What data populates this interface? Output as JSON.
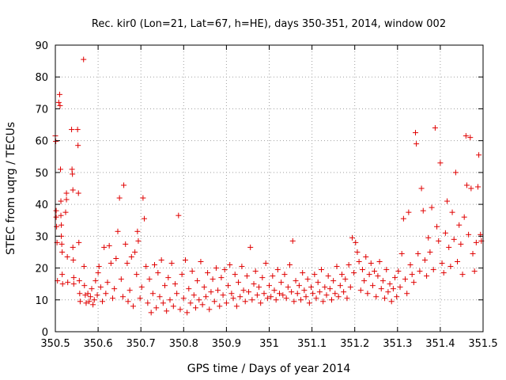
{
  "chart_data": {
    "type": "scatter",
    "title": "Rec. kir0 (Lon=21, Lat=67, h=HE), days 350-351, 2014, window 002",
    "xlabel": "GPS time / Days of year 2014",
    "ylabel": "STEC from uqrg / TECUs",
    "xlim": [
      350.5,
      351.5
    ],
    "ylim": [
      0,
      90
    ],
    "x_ticks": [
      350.5,
      350.6,
      350.7,
      350.8,
      350.9,
      351,
      351.1,
      351.2,
      351.3,
      351.4,
      351.5
    ],
    "x_tick_labels": [
      "350.5",
      "350.6",
      "350.7",
      "350.8",
      "350.9",
      "351",
      "351.1",
      "351.2",
      "351.3",
      "351.4",
      "351.5"
    ],
    "y_ticks": [
      0,
      10,
      20,
      30,
      40,
      50,
      60,
      70,
      80,
      90
    ],
    "y_tick_labels": [
      "0",
      "10",
      "20",
      "30",
      "40",
      "50",
      "60",
      "70",
      "80",
      "90"
    ],
    "grid": true,
    "marker": "plus",
    "color": "#e00000",
    "series": [
      {
        "points": [
          [
            350.5,
            61.5
          ],
          [
            350.501,
            59.8
          ],
          [
            350.502,
            38.0
          ],
          [
            350.502,
            36.0
          ],
          [
            350.503,
            33.0
          ],
          [
            350.504,
            28.0
          ],
          [
            350.505,
            16.0
          ],
          [
            350.508,
            72.0
          ],
          [
            350.51,
            74.5
          ],
          [
            350.511,
            71.0
          ],
          [
            350.512,
            51.0
          ],
          [
            350.513,
            41.0
          ],
          [
            350.513,
            36.5
          ],
          [
            350.514,
            33.5
          ],
          [
            350.514,
            30.0
          ],
          [
            350.515,
            27.5
          ],
          [
            350.516,
            25.0
          ],
          [
            350.516,
            18.0
          ],
          [
            350.517,
            15.0
          ],
          [
            350.524,
            37.5
          ],
          [
            350.526,
            41.5
          ],
          [
            350.526,
            43.5
          ],
          [
            350.528,
            23.5
          ],
          [
            350.529,
            15.5
          ],
          [
            350.538,
            63.5
          ],
          [
            350.539,
            51.0
          ],
          [
            350.54,
            49.5
          ],
          [
            350.541,
            44.5
          ],
          [
            350.541,
            26.5
          ],
          [
            350.542,
            22.5
          ],
          [
            350.543,
            17.0
          ],
          [
            350.543,
            15.0
          ],
          [
            350.552,
            63.5
          ],
          [
            350.553,
            58.5
          ],
          [
            350.554,
            43.5
          ],
          [
            350.555,
            28.0
          ],
          [
            350.556,
            16.0
          ],
          [
            350.557,
            12.0
          ],
          [
            350.558,
            9.5
          ],
          [
            350.566,
            85.5
          ],
          [
            350.567,
            20.5
          ],
          [
            350.568,
            14.5
          ],
          [
            350.57,
            11.5
          ],
          [
            350.572,
            9.0
          ],
          [
            350.576,
            12.0
          ],
          [
            350.579,
            9.5
          ],
          [
            350.582,
            11.0
          ],
          [
            350.585,
            13.5
          ],
          [
            350.588,
            8.5
          ],
          [
            350.591,
            10.0
          ],
          [
            350.594,
            16.0
          ],
          [
            350.598,
            11.5
          ],
          [
            350.6,
            18.5
          ],
          [
            350.602,
            20.5
          ],
          [
            350.606,
            14.0
          ],
          [
            350.61,
            9.5
          ],
          [
            350.614,
            26.5
          ],
          [
            350.618,
            12.0
          ],
          [
            350.622,
            15.5
          ],
          [
            350.626,
            27.0
          ],
          [
            350.63,
            21.5
          ],
          [
            350.634,
            10.5
          ],
          [
            350.638,
            13.5
          ],
          [
            350.642,
            23.0
          ],
          [
            350.646,
            31.5
          ],
          [
            350.65,
            42.0
          ],
          [
            350.654,
            16.5
          ],
          [
            350.658,
            11.0
          ],
          [
            350.66,
            46.0
          ],
          [
            350.664,
            27.5
          ],
          [
            350.668,
            21.5
          ],
          [
            350.67,
            9.5
          ],
          [
            350.674,
            13.0
          ],
          [
            350.678,
            23.5
          ],
          [
            350.682,
            8.0
          ],
          [
            350.686,
            25.0
          ],
          [
            350.69,
            18.0
          ],
          [
            350.692,
            31.5
          ],
          [
            350.694,
            28.5
          ],
          [
            350.698,
            10.5
          ],
          [
            350.702,
            14.0
          ],
          [
            350.705,
            42.0
          ],
          [
            350.708,
            35.5
          ],
          [
            350.712,
            20.5
          ],
          [
            350.716,
            9.0
          ],
          [
            350.72,
            16.5
          ],
          [
            350.724,
            6.0
          ],
          [
            350.728,
            12.0
          ],
          [
            350.732,
            21.0
          ],
          [
            350.736,
            7.5
          ],
          [
            350.74,
            18.5
          ],
          [
            350.744,
            11.0
          ],
          [
            350.748,
            22.5
          ],
          [
            350.752,
            9.0
          ],
          [
            350.756,
            14.5
          ],
          [
            350.76,
            6.5
          ],
          [
            350.764,
            17.0
          ],
          [
            350.768,
            10.0
          ],
          [
            350.772,
            21.5
          ],
          [
            350.776,
            8.0
          ],
          [
            350.78,
            15.0
          ],
          [
            350.784,
            12.0
          ],
          [
            350.788,
            36.5
          ],
          [
            350.792,
            7.0
          ],
          [
            350.796,
            18.0
          ],
          [
            350.8,
            10.5
          ],
          [
            350.804,
            22.5
          ],
          [
            350.808,
            6.0
          ],
          [
            350.812,
            13.5
          ],
          [
            350.816,
            9.0
          ],
          [
            350.82,
            19.0
          ],
          [
            350.824,
            11.5
          ],
          [
            350.828,
            7.5
          ],
          [
            350.832,
            16.0
          ],
          [
            350.836,
            10.0
          ],
          [
            350.84,
            22.0
          ],
          [
            350.844,
            8.5
          ],
          [
            350.848,
            14.0
          ],
          [
            350.852,
            11.0
          ],
          [
            350.856,
            18.5
          ],
          [
            350.86,
            7.0
          ],
          [
            350.864,
            12.5
          ],
          [
            350.868,
            16.5
          ],
          [
            350.872,
            9.5
          ],
          [
            350.876,
            20.0
          ],
          [
            350.88,
            13.0
          ],
          [
            350.884,
            8.0
          ],
          [
            350.888,
            17.0
          ],
          [
            350.892,
            11.5
          ],
          [
            350.896,
            19.5
          ],
          [
            350.9,
            9.0
          ],
          [
            350.904,
            14.5
          ],
          [
            350.908,
            21.0
          ],
          [
            350.912,
            12.0
          ],
          [
            350.916,
            10.5
          ],
          [
            350.92,
            18.0
          ],
          [
            350.924,
            8.0
          ],
          [
            350.928,
            15.5
          ],
          [
            350.932,
            11.0
          ],
          [
            350.936,
            20.5
          ],
          [
            350.94,
            13.0
          ],
          [
            350.944,
            9.5
          ],
          [
            350.948,
            17.5
          ],
          [
            350.952,
            12.5
          ],
          [
            350.956,
            26.5
          ],
          [
            350.96,
            10.0
          ],
          [
            350.964,
            15.0
          ],
          [
            350.968,
            19.0
          ],
          [
            350.972,
            11.5
          ],
          [
            350.976,
            14.0
          ],
          [
            350.98,
            9.0
          ],
          [
            350.984,
            17.0
          ],
          [
            350.988,
            12.0
          ],
          [
            350.992,
            21.5
          ],
          [
            350.996,
            10.5
          ],
          [
            351.0,
            14.5
          ],
          [
            351.004,
            11.0
          ],
          [
            351.008,
            17.5
          ],
          [
            351.012,
            13.0
          ],
          [
            351.016,
            10.0
          ],
          [
            351.02,
            19.5
          ],
          [
            351.024,
            12.0
          ],
          [
            351.028,
            15.5
          ],
          [
            351.032,
            11.5
          ],
          [
            351.036,
            18.0
          ],
          [
            351.04,
            10.5
          ],
          [
            351.044,
            14.0
          ],
          [
            351.048,
            21.0
          ],
          [
            351.052,
            12.5
          ],
          [
            351.055,
            28.5
          ],
          [
            351.058,
            9.5
          ],
          [
            351.062,
            16.0
          ],
          [
            351.066,
            12.0
          ],
          [
            351.07,
            14.5
          ],
          [
            351.074,
            10.0
          ],
          [
            351.078,
            18.5
          ],
          [
            351.082,
            13.0
          ],
          [
            351.086,
            11.0
          ],
          [
            351.09,
            16.5
          ],
          [
            351.094,
            9.0
          ],
          [
            351.098,
            14.0
          ],
          [
            351.102,
            12.0
          ],
          [
            351.106,
            18.0
          ],
          [
            351.11,
            10.5
          ],
          [
            351.114,
            15.5
          ],
          [
            351.118,
            12.5
          ],
          [
            351.122,
            19.5
          ],
          [
            351.126,
            9.5
          ],
          [
            351.13,
            14.0
          ],
          [
            351.134,
            11.5
          ],
          [
            351.138,
            17.5
          ],
          [
            351.142,
            13.5
          ],
          [
            351.146,
            10.0
          ],
          [
            351.15,
            16.0
          ],
          [
            351.154,
            12.0
          ],
          [
            351.158,
            20.5
          ],
          [
            351.162,
            11.0
          ],
          [
            351.166,
            14.5
          ],
          [
            351.17,
            18.0
          ],
          [
            351.174,
            12.5
          ],
          [
            351.178,
            16.5
          ],
          [
            351.182,
            10.5
          ],
          [
            351.186,
            21.0
          ],
          [
            351.19,
            14.0
          ],
          [
            351.194,
            29.5
          ],
          [
            351.198,
            18.5
          ],
          [
            351.202,
            28.0
          ],
          [
            351.206,
            25.0
          ],
          [
            351.21,
            22.0
          ],
          [
            351.214,
            13.0
          ],
          [
            351.218,
            19.5
          ],
          [
            351.222,
            16.0
          ],
          [
            351.226,
            23.5
          ],
          [
            351.23,
            12.0
          ],
          [
            351.234,
            18.0
          ],
          [
            351.238,
            21.5
          ],
          [
            351.242,
            14.5
          ],
          [
            351.246,
            19.0
          ],
          [
            351.25,
            11.0
          ],
          [
            351.254,
            17.5
          ],
          [
            351.258,
            22.0
          ],
          [
            351.262,
            13.5
          ],
          [
            351.266,
            16.0
          ],
          [
            351.27,
            10.5
          ],
          [
            351.274,
            19.5
          ],
          [
            351.278,
            12.5
          ],
          [
            351.282,
            15.0
          ],
          [
            351.286,
            9.5
          ],
          [
            351.29,
            13.5
          ],
          [
            351.294,
            17.0
          ],
          [
            351.298,
            11.0
          ],
          [
            351.302,
            19.0
          ],
          [
            351.306,
            14.0
          ],
          [
            351.31,
            24.5
          ],
          [
            351.314,
            35.5
          ],
          [
            351.318,
            16.5
          ],
          [
            351.322,
            12.0
          ],
          [
            351.326,
            37.5
          ],
          [
            351.33,
            21.0
          ],
          [
            351.334,
            18.0
          ],
          [
            351.338,
            15.5
          ],
          [
            351.342,
            62.5
          ],
          [
            351.344,
            59.0
          ],
          [
            351.348,
            24.5
          ],
          [
            351.352,
            19.0
          ],
          [
            351.356,
            45.0
          ],
          [
            351.36,
            38.0
          ],
          [
            351.364,
            22.5
          ],
          [
            351.368,
            17.5
          ],
          [
            351.372,
            29.5
          ],
          [
            351.376,
            25.0
          ],
          [
            351.38,
            39.0
          ],
          [
            351.384,
            19.5
          ],
          [
            351.388,
            64.0
          ],
          [
            351.392,
            33.0
          ],
          [
            351.396,
            28.5
          ],
          [
            351.4,
            53.0
          ],
          [
            351.404,
            21.5
          ],
          [
            351.408,
            18.5
          ],
          [
            351.412,
            31.0
          ],
          [
            351.416,
            41.0
          ],
          [
            351.42,
            26.5
          ],
          [
            351.424,
            20.5
          ],
          [
            351.428,
            37.5
          ],
          [
            351.432,
            29.0
          ],
          [
            351.436,
            50.0
          ],
          [
            351.44,
            22.0
          ],
          [
            351.444,
            33.5
          ],
          [
            351.448,
            27.5
          ],
          [
            351.452,
            18.0
          ],
          [
            351.456,
            36.0
          ],
          [
            351.46,
            61.5
          ],
          [
            351.462,
            46.0
          ],
          [
            351.466,
            30.5
          ],
          [
            351.47,
            61.0
          ],
          [
            351.472,
            45.0
          ],
          [
            351.476,
            24.5
          ],
          [
            351.48,
            19.0
          ],
          [
            351.484,
            28.0
          ],
          [
            351.488,
            45.5
          ],
          [
            351.49,
            55.5
          ],
          [
            351.494,
            30.5
          ],
          [
            351.496,
            28.5
          ]
        ]
      }
    ]
  }
}
